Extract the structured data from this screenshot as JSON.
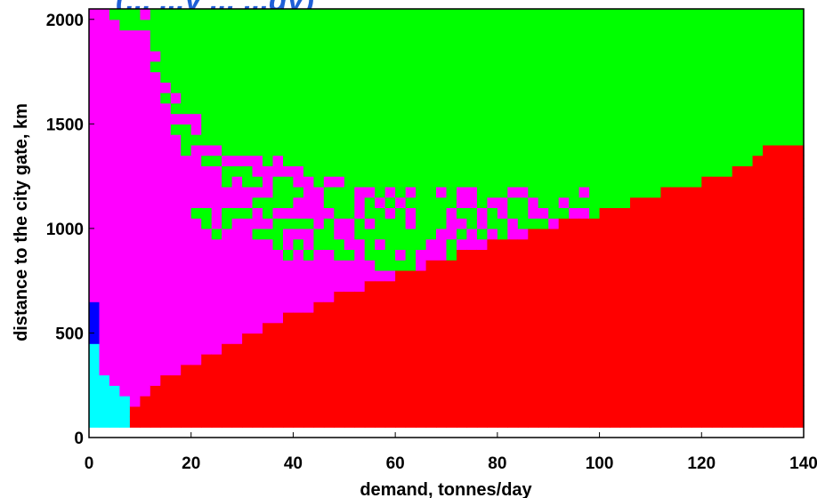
{
  "chart_data": {
    "type": "heatmap",
    "title": "(... ...y ... ...gy)",
    "xlabel": "demand, tonnes/day",
    "ylabel": "distance to the city gate, km",
    "xlim": [
      0,
      140
    ],
    "ylim": [
      0,
      2050
    ],
    "x_ticks": [
      "0",
      "20",
      "40",
      "60",
      "80",
      "100",
      "120",
      "140"
    ],
    "y_ticks": [
      "0",
      "500",
      "1000",
      "1500",
      "2000"
    ],
    "grid": false,
    "legend": "none",
    "colors": {
      "green": "#00ff00",
      "magenta": "#ff00ff",
      "red": "#ff0000",
      "blue": "#0000ff",
      "cyan": "#00ffff",
      "title": "#1f5fd6"
    },
    "regions": {
      "red_boundary": [
        [
          5,
          50
        ],
        [
          8,
          150
        ],
        [
          10,
          200
        ],
        [
          12,
          250
        ],
        [
          15,
          300
        ],
        [
          19,
          350
        ],
        [
          23,
          400
        ],
        [
          27,
          450
        ],
        [
          31,
          500
        ],
        [
          36,
          550
        ],
        [
          41,
          600
        ],
        [
          46,
          650
        ],
        [
          51,
          700
        ],
        [
          57,
          750
        ],
        [
          63,
          800
        ],
        [
          69,
          850
        ],
        [
          75,
          900
        ],
        [
          82,
          950
        ],
        [
          89,
          1000
        ],
        [
          96,
          1050
        ],
        [
          103,
          1100
        ],
        [
          109,
          1150
        ],
        [
          116,
          1200
        ],
        [
          123,
          1250
        ],
        [
          129,
          1300
        ],
        [
          133,
          1400
        ],
        [
          140,
          1400
        ]
      ],
      "cyan_region": {
        "x": [
          0,
          8
        ],
        "y_bottom": 50,
        "top_steps": [
          [
            0,
            450
          ],
          [
            2,
            350
          ],
          [
            3,
            300
          ],
          [
            4,
            250
          ],
          [
            6,
            200
          ],
          [
            8,
            200
          ]
        ]
      },
      "blue_region": {
        "x": [
          0,
          3
        ],
        "y": [
          350,
          650
        ]
      },
      "magenta_green_boundary": [
        [
          10,
          2050
        ],
        [
          12,
          1900
        ],
        [
          14,
          1700
        ],
        [
          17,
          1550
        ],
        [
          20,
          1450
        ],
        [
          23,
          1350
        ],
        [
          27,
          1300
        ],
        [
          32,
          1250
        ],
        [
          38,
          1200
        ],
        [
          44,
          1150
        ],
        [
          50,
          1120
        ],
        [
          56,
          1100
        ],
        [
          62,
          1090
        ],
        [
          68,
          1080
        ],
        [
          74,
          1075
        ],
        [
          80,
          1070
        ],
        [
          86,
          1065
        ],
        [
          92,
          1060
        ],
        [
          97,
          1080
        ]
      ],
      "magenta_lower_boundary": [
        [
          17,
          1100
        ],
        [
          20,
          1000
        ],
        [
          25,
          950
        ],
        [
          30,
          920
        ],
        [
          36,
          880
        ],
        [
          42,
          860
        ],
        [
          48,
          840
        ],
        [
          54,
          820
        ],
        [
          60,
          810
        ],
        [
          66,
          820
        ],
        [
          72,
          840
        ]
      ]
    }
  }
}
